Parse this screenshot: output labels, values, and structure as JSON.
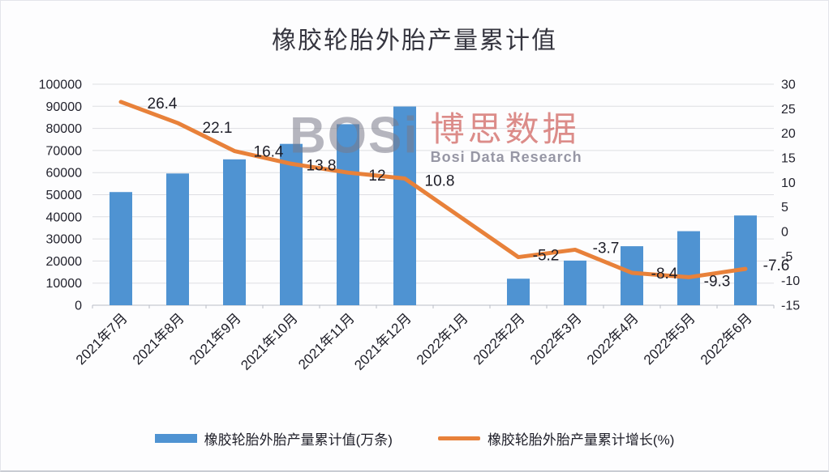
{
  "page": {
    "background": "#fdfdfe"
  },
  "chart_data": {
    "type": "combo-bar-line",
    "title": "橡胶轮胎外胎产量累计值",
    "categories": [
      "2021年7月",
      "2021年8月",
      "2021年9月",
      "2021年10月",
      "2021年11月",
      "2021年12月",
      "2022年1月",
      "2022年2月",
      "2022年3月",
      "2022年4月",
      "2022年5月",
      "2022年6月"
    ],
    "series": [
      {
        "name": "橡胶轮胎外胎产量累计值(万条)",
        "type": "bar",
        "axis": "left",
        "color": "#4f93d2",
        "values": [
          51200,
          59600,
          66000,
          73000,
          81900,
          89900,
          null,
          12000,
          20200,
          26700,
          33500,
          40600
        ]
      },
      {
        "name": "橡胶轮胎外胎产量累计增长(%)",
        "type": "line",
        "axis": "right",
        "color": "#e8813a",
        "values": [
          26.4,
          22.1,
          16.4,
          13.8,
          12,
          10.8,
          null,
          -5.2,
          -3.7,
          -8.4,
          -9.3,
          -7.6
        ],
        "labels": [
          "26.4",
          "22.1",
          "16.4",
          "13.8",
          "12",
          "10.8",
          "",
          "-5.2",
          "-3.7",
          "-8.4",
          "-9.3",
          "-7.6"
        ]
      }
    ],
    "left_axis": {
      "min": 0,
      "max": 100000,
      "step": 10000
    },
    "right_axis": {
      "min": -15,
      "max": 30,
      "step": 5
    },
    "grid": true,
    "legend_position": "bottom"
  },
  "watermark": {
    "logo": "BOSi",
    "cn": "博思数据",
    "en": "Bosi Data Research"
  }
}
